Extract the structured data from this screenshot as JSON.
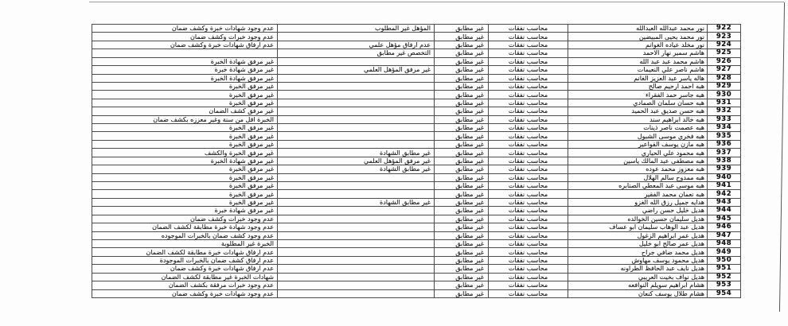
{
  "page": {
    "background": "#fdfdfd",
    "border_color": "#4c4c4c",
    "text_color": "#1c1c1c"
  },
  "table": {
    "rows": [
      {
        "no": "922",
        "name": "نور محمد عبدالله العبدالله",
        "job": "محاسب نفقات",
        "status": "غير مطابق",
        "reason1": "المؤهل غير المطلوب",
        "reason2": "عدم وجود شهادات خبرة وكشف ضمان"
      },
      {
        "no": "923",
        "name": "نور محمد يحيى المبيضين",
        "job": "محاسب نفقات",
        "status": "غير مطابق",
        "reason1": "",
        "reason2": "عدم وجود خبرات وكشف ضمان"
      },
      {
        "no": "924",
        "name": "نور مخلد عياده الغوانم",
        "job": "محاسب نفقات",
        "status": "غير مطابق",
        "reason1": "عدم ارفاق مؤهل علمي",
        "reason2": "عدم ارفاق شهادات خبرة وكشف ضمان"
      },
      {
        "no": "925",
        "name": "هاشم سمير نهار الاحمد",
        "job": "محاسب نفقات",
        "status": "غير مطابق",
        "reason1": "التخصص غير مطابق",
        "reason2": ""
      },
      {
        "no": "926",
        "name": "هاشم محمد عبد عبد الله",
        "job": "محاسب نفقات",
        "status": "غير مطابق",
        "reason1": "",
        "reason2": "غير مرفق شهادة الخبرة"
      },
      {
        "no": "927",
        "name": "هاشم ناصر علي النعيمات",
        "job": "محاسب نفقات",
        "status": "غير مطابق",
        "reason1": "غير مرفق المؤهل العلمي",
        "reason2": "غير مرفق شهادة خبرة"
      },
      {
        "no": "928",
        "name": "هاله ياسر عبد العزيز الغانم",
        "job": "محاسب نفقات",
        "status": "غير مطابق",
        "reason1": "",
        "reason2": "غير مرفق شهادة الخبرة"
      },
      {
        "no": "929",
        "name": "هبه احمد ارحيم صالح",
        "job": "محاسب نفقات",
        "status": "غير مطابق",
        "reason1": "",
        "reason2": "غير مرفق الخبرة"
      },
      {
        "no": "930",
        "name": "هبه جاسر حمد الفقراء",
        "job": "محاسب نفقات",
        "status": "غير مطابق",
        "reason1": "",
        "reason2": "غير مرفق الخبرة"
      },
      {
        "no": "931",
        "name": "هبه حسان سلمان الصمادي",
        "job": "محاسب نفقات",
        "status": "غير مطابق",
        "reason1": "",
        "reason2": "غير مرفق الخبرة"
      },
      {
        "no": "932",
        "name": "هبه حسن صديق عبد الحميد",
        "job": "محاسب نفقات",
        "status": "غير مطابق",
        "reason1": "",
        "reason2": "غير مرفق كشف الضمان"
      },
      {
        "no": "933",
        "name": "هبه خالد ابراهيم سند",
        "job": "محاسب نفقات",
        "status": "غير مطابق",
        "reason1": "",
        "reason2": "الخبرة اقل من سنة وغير معززه بكشف ضمان"
      },
      {
        "no": "934",
        "name": "هبه عصمت ناصر ذينات",
        "job": "محاسب نفقات",
        "status": "غير مطابق",
        "reason1": "",
        "reason2": "غير مرفق الخبرة"
      },
      {
        "no": "935",
        "name": "هبه فخري موسى الشبول",
        "job": "محاسب نفقات",
        "status": "غير مطابق",
        "reason1": "",
        "reason2": "غير مرفق الخبرة"
      },
      {
        "no": "936",
        "name": "هبه مازن يوسف الفواعير",
        "job": "محاسب نفقات",
        "status": "غير مطابق",
        "reason1": "",
        "reason2": "غير مرفق الخبرة"
      },
      {
        "no": "937",
        "name": "هبه محمود علي الحياري",
        "job": "محاسب نفقات",
        "status": "غير مطابق",
        "reason1": "غير مطابق الشهادة",
        "reason2": "غير مرفق الخبرة والكشف"
      },
      {
        "no": "938",
        "name": "هبه مصطفى عبد المالك ياسين",
        "job": "محاسب نفقات",
        "status": "غير مطابق",
        "reason1": "غير مرفق المؤهل العلمي",
        "reason2": "غير مرفق شهادة الخبرة"
      },
      {
        "no": "939",
        "name": "هبه معزوز محمد عوده",
        "job": "محاسب نفقات",
        "status": "غير مطابق",
        "reason1": "غير مطابق الشهادة",
        "reason2": "غير مرفق الخبرة"
      },
      {
        "no": "940",
        "name": "هبه ممدوح سالم الهلال",
        "job": "محاسب نفقات",
        "status": "غير مطابق",
        "reason1": "",
        "reason2": "غير مرفق الخبرة"
      },
      {
        "no": "941",
        "name": "هبه موسى عبد المعطي الصنابره",
        "job": "محاسب نفقات",
        "status": "غير مطابق",
        "reason1": "",
        "reason2": "غير مرفق الخبرة"
      },
      {
        "no": "942",
        "name": "هبه نعمان محمد الفقير",
        "job": "محاسب نفقات",
        "status": "غير مطابق",
        "reason1": "",
        "reason2": "غير مرفق الخبرة"
      },
      {
        "no": "943",
        "name": "هدايه جميل رزق الله الغزو",
        "job": "محاسب نفقات",
        "status": "غير مطابق",
        "reason1": "غير مطابق الشهادة",
        "reason2": "غير مرفق الخبرة"
      },
      {
        "no": "944",
        "name": "هديل خليل حسن راضي",
        "job": "محاسب نفقات",
        "status": "غير مطابق",
        "reason1": "",
        "reason2": "غير مرفق شهادة خبرة"
      },
      {
        "no": "945",
        "name": "هديل سليمان حسين الخوالده",
        "job": "محاسب نفقات",
        "status": "غير مطابق",
        "reason1": "",
        "reason2": "عدم وجود خبرات وكشف ضمان"
      },
      {
        "no": "946",
        "name": "هديل عبد الوهاب سليمان ابو عساف",
        "job": "محاسب نفقات",
        "status": "غير مطابق",
        "reason1": "",
        "reason2": "عدم وجود شهادة خبرة مطابقة لكشف الضمان"
      },
      {
        "no": "947",
        "name": "هديل عمر ابراهيم الزغول",
        "job": "محاسب نفقات",
        "status": "غير مطابق",
        "reason1": "",
        "reason2": "عدم وجود كشف ضمان بالخبرات الموجوده"
      },
      {
        "no": "948",
        "name": "هديل عمر صالح ابو خليل",
        "job": "محاسب نفقات",
        "status": "غير مطابق",
        "reason1": "",
        "reason2": "الخبرة غير المطلوبة"
      },
      {
        "no": "949",
        "name": "هديل محمد ضافي جراح",
        "job": "محاسب نفقات",
        "status": "غير مطابق",
        "reason1": "",
        "reason2": "عدم ارفاق شهادات خبرة مطابقة لكشف الضمان"
      },
      {
        "no": "950",
        "name": "هديل محمود يوسف مهاوش",
        "job": "محاسب نفقات",
        "status": "غير مطابق",
        "reason1": "",
        "reason2": "عدم ارفاق كشف ضمان بالخبرات الموجودة"
      },
      {
        "no": "951",
        "name": "هديل نايف عبد الحافظ الطراونه",
        "job": "محاسب نفقات",
        "status": "غير مطابق",
        "reason1": "",
        "reason2": "عدم ارفاق شهادات خبرة وكشف ضمان"
      },
      {
        "no": "952",
        "name": "هديل نواف بخيت العريبي",
        "job": "محاسب نفقات",
        "status": "غير مطابق",
        "reason1": "",
        "reason2": "شهادات الخبرة غير مطابقة لكشف الضمان"
      },
      {
        "no": "953",
        "name": "هشام ابراهيم سويلم النوافعه",
        "job": "محاسب نفقات",
        "status": "غير مطابق",
        "reason1": "",
        "reason2": "عدم وجود خبرات مرفقة بكشف الضمان"
      },
      {
        "no": "954",
        "name": "هشام طلال يوسف كنعان",
        "job": "محاسب نفقات",
        "status": "غير مطابق",
        "reason1": "",
        "reason2": "عدم وجود شهادات خبرة وكشف ضمان"
      }
    ]
  }
}
